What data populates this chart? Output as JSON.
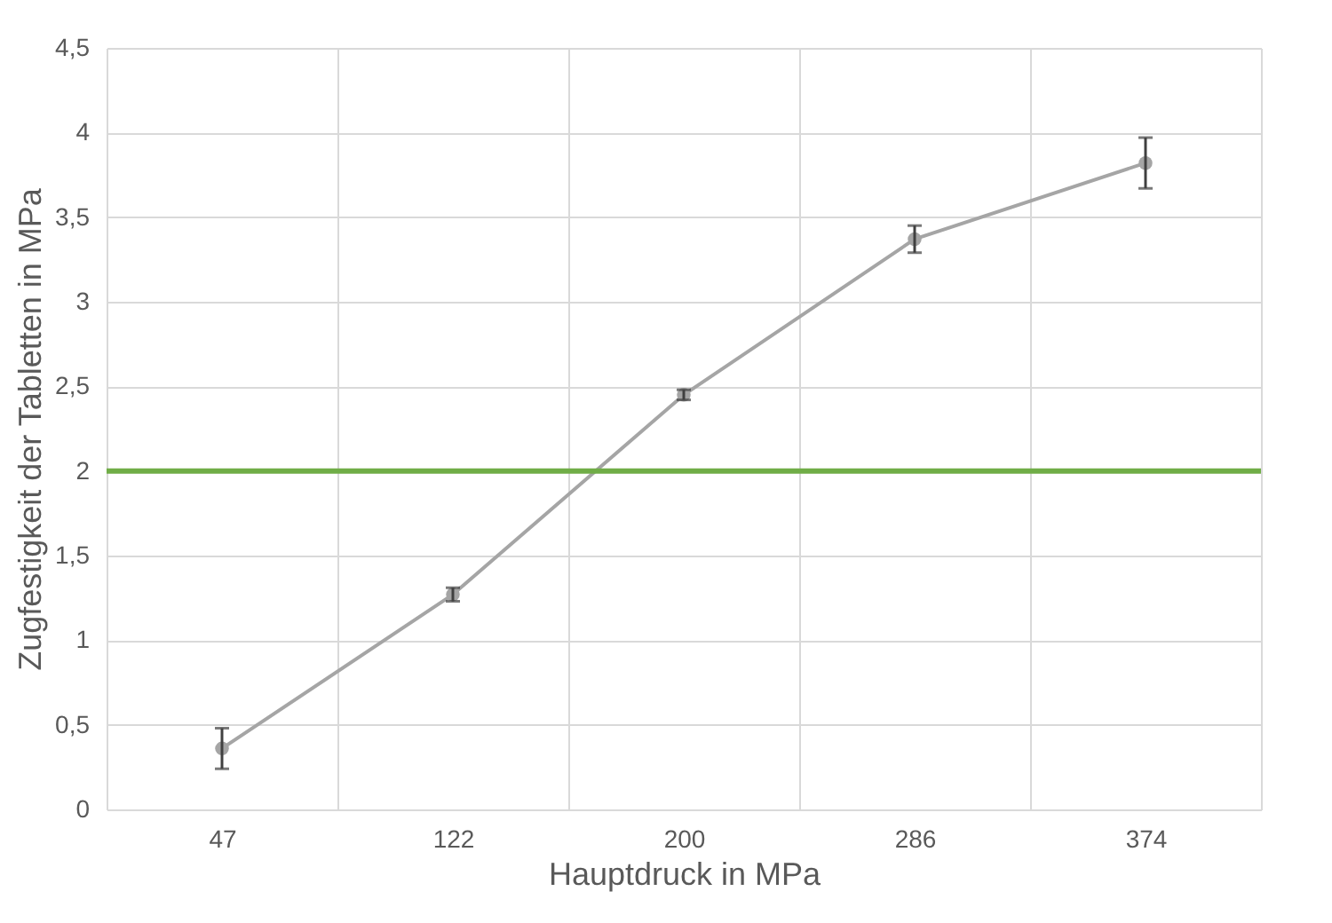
{
  "chart_data": {
    "type": "line",
    "xlabel": "Hauptdruck in MPa",
    "ylabel": "Zugfestigkeit der Tabletten in MPa",
    "categories": [
      "47",
      "122",
      "200",
      "286",
      "374"
    ],
    "series": [
      {
        "color": "#a5a5a5",
        "values": [
          0.36,
          1.27,
          2.45,
          3.37,
          3.82
        ],
        "errors": [
          0.12,
          0.04,
          0.03,
          0.08,
          0.15
        ]
      }
    ],
    "ylim": [
      0,
      4.5
    ],
    "yticks": [
      0,
      {
        "value": 0.5,
        "label": "0,5"
      },
      1,
      {
        "value": 1.5,
        "label": "1,5"
      },
      2,
      {
        "value": 2.5,
        "label": "2,5"
      },
      3,
      {
        "value": 3.5,
        "label": "3,5"
      },
      4,
      {
        "value": 4.5,
        "label": "4,5"
      }
    ],
    "ref_lines": [
      {
        "axis": "y",
        "value": 2,
        "color": "#70ad47"
      }
    ],
    "grid": true,
    "marker": "circle",
    "line_style": "solid"
  }
}
